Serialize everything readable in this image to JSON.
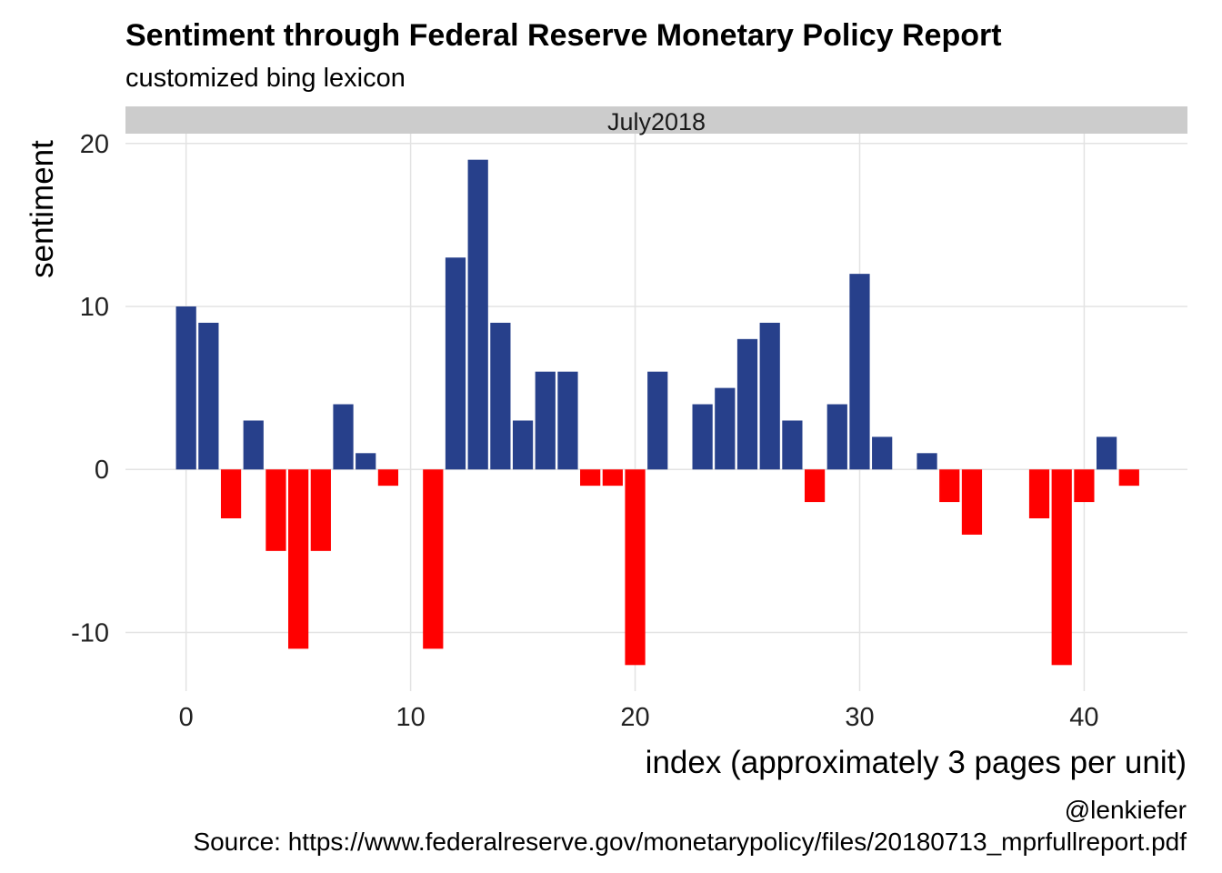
{
  "chart_data": {
    "type": "bar",
    "title": "Sentiment through Federal Reserve Monetary Policy Report",
    "subtitle": "customized bing lexicon",
    "facet_label": "July2018",
    "xlabel": "index (approximately 3 pages per unit)",
    "ylabel": "sentiment",
    "caption_handle": "@lenkiefer",
    "caption_source": "Source: https://www.federalreserve.gov/monetarypolicy/files/20180713_mprfullreport.pdf",
    "x": [
      0,
      1,
      2,
      3,
      4,
      5,
      6,
      7,
      8,
      9,
      11,
      12,
      13,
      14,
      15,
      16,
      17,
      18,
      19,
      20,
      21,
      23,
      24,
      25,
      26,
      27,
      28,
      29,
      30,
      31,
      33,
      34,
      35,
      38,
      39,
      40,
      41,
      42
    ],
    "values": [
      10,
      9,
      -3,
      3,
      -5,
      -11,
      -5,
      4,
      1,
      -1,
      -11,
      13,
      19,
      9,
      3,
      6,
      6,
      -1,
      -1,
      -12,
      6,
      4,
      5,
      8,
      9,
      3,
      -2,
      4,
      12,
      2,
      1,
      -2,
      -4,
      -3,
      -12,
      -2,
      2,
      -1
    ],
    "xlim": [
      -2.7,
      44.6
    ],
    "ylim": [
      -13.6,
      20.6
    ],
    "x_ticks": [
      0,
      10,
      20,
      30,
      40
    ],
    "y_ticks": [
      -10,
      0,
      10,
      20
    ],
    "x_tick_labels": [
      "0",
      "10",
      "20",
      "30",
      "40"
    ],
    "y_tick_labels": [
      "-10",
      "0",
      "10",
      "20"
    ],
    "colors": {
      "positive": "#27408b",
      "negative": "#ff0000",
      "grid": "#e3e3e3",
      "strip": "#cccccc"
    },
    "grid": true,
    "legend": "none"
  }
}
